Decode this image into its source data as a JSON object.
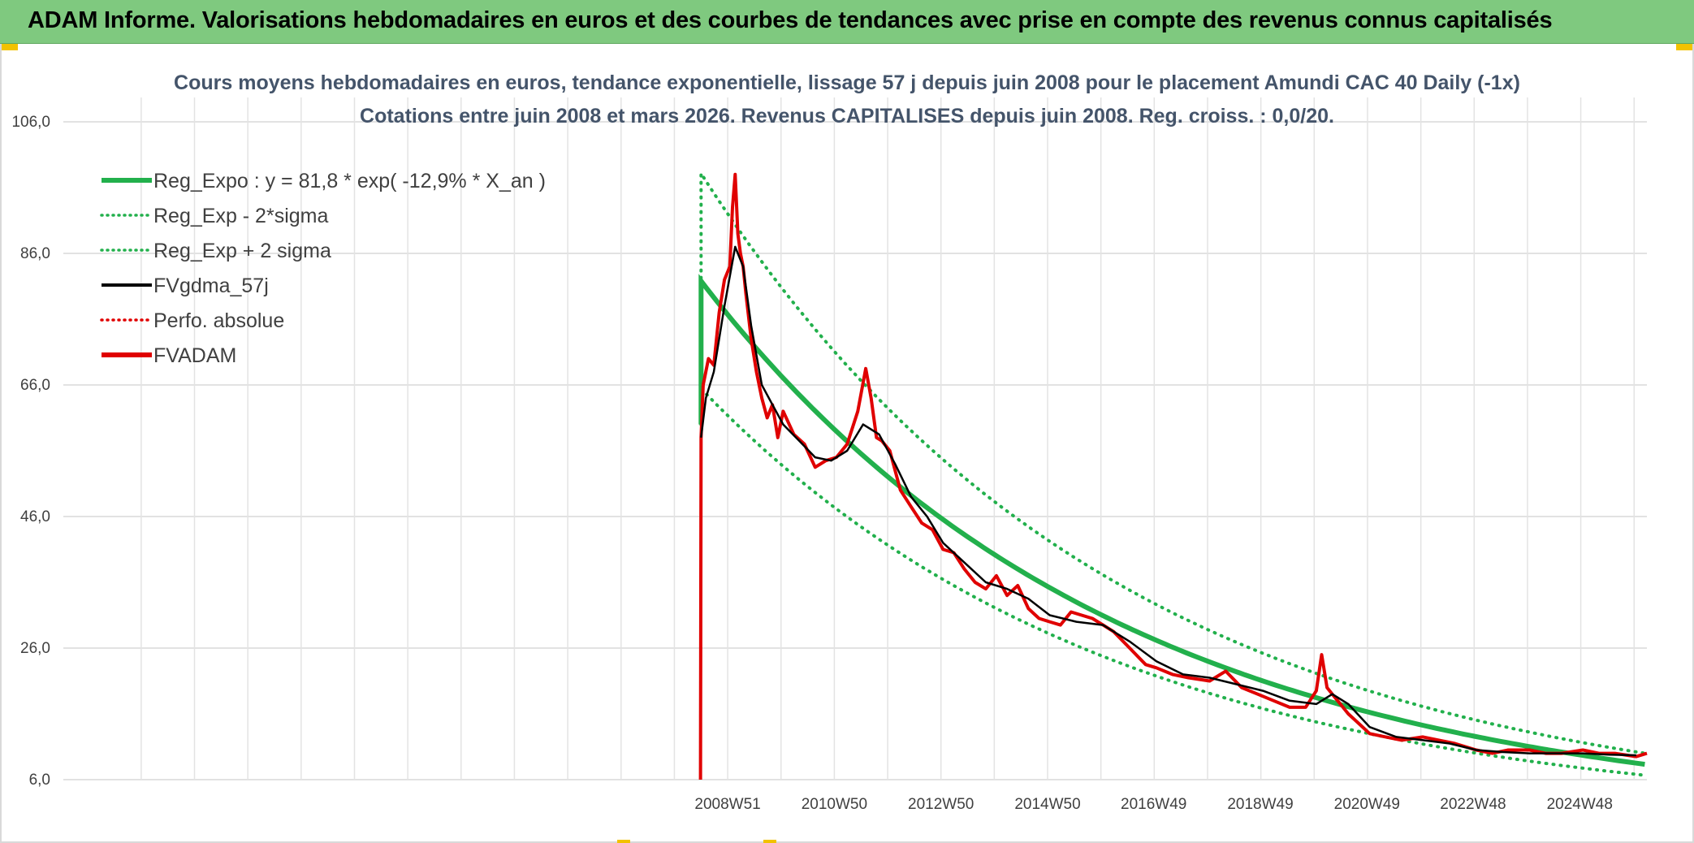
{
  "banner": {
    "title": "ADAM Informe. Valorisations hebdomadaires en euros et des courbes de tendances avec prise en compte des revenus connus capitalisés",
    "background": "#7fc97f"
  },
  "chart_data": {
    "type": "line",
    "title": "Cours moyens hebdomadaires en euros, tendance exponentielle, lissage 57 j depuis juin 2008 pour le placement Amundi CAC 40 Daily (-1x)",
    "subtitle": "Cotations entre juin 2008 et mars 2026. Revenus CAPITALISES depuis juin 2008. Reg. croiss. : 0,0/20.",
    "xlabel": "",
    "ylabel": "",
    "ylim": [
      6,
      106
    ],
    "y_ticks": [
      "106,0",
      "86,0",
      "66,0",
      "46,0",
      "26,0",
      "6,0"
    ],
    "x_ticks": [
      "2008W51",
      "2010W50",
      "2012W50",
      "2014W50",
      "2016W49",
      "2018W49",
      "2020W49",
      "2022W48",
      "2024W48"
    ],
    "x_tick_years": [
      2008.96,
      2010.96,
      2012.96,
      2014.96,
      2016.95,
      2018.95,
      2020.95,
      2022.94,
      2024.94
    ],
    "x_domain": [
      1996.5,
      2026.2
    ],
    "grid": true,
    "legend_position": "top-left",
    "legend": [
      {
        "label": "Reg_Expo : y = 81,8 * exp( -12,9% *  X_an )",
        "color": "#22b04c",
        "style": "solid-thick"
      },
      {
        "label": "Reg_Exp - 2*sigma",
        "color": "#22b04c",
        "style": "dotted"
      },
      {
        "label": "Reg_Exp + 2 sigma",
        "color": "#22b04c",
        "style": "dotted"
      },
      {
        "label": "FVgdma_57j",
        "color": "#000000",
        "style": "solid"
      },
      {
        "label": "Perfo. absolue",
        "color": "#e00000",
        "style": "dotted"
      },
      {
        "label": "FVADAM",
        "color": "#e00000",
        "style": "solid-thick"
      }
    ],
    "regression": {
      "a": 81.8,
      "rate": -0.129,
      "start_year": 2008.46,
      "end_year": 2026.2,
      "sigma_lower_factor": 0.8,
      "sigma_upper_factor": 1.2
    },
    "series": [
      {
        "name": "FVADAM",
        "color": "#e00000",
        "x": [
          2008.45,
          2008.46,
          2008.5,
          2008.6,
          2008.7,
          2008.8,
          2008.9,
          2009.0,
          2009.05,
          2009.1,
          2009.15,
          2009.2,
          2009.25,
          2009.3,
          2009.4,
          2009.5,
          2009.6,
          2009.7,
          2009.8,
          2009.9,
          2010.0,
          2010.2,
          2010.4,
          2010.6,
          2010.8,
          2011.0,
          2011.2,
          2011.4,
          2011.55,
          2011.65,
          2011.75,
          2011.85,
          2012.0,
          2012.2,
          2012.4,
          2012.6,
          2012.8,
          2013.0,
          2013.2,
          2013.4,
          2013.6,
          2013.8,
          2014.0,
          2014.2,
          2014.4,
          2014.6,
          2014.8,
          2015.0,
          2015.2,
          2015.4,
          2015.6,
          2015.8,
          2016.0,
          2016.2,
          2016.5,
          2016.8,
          2017.0,
          2017.3,
          2017.6,
          2018.0,
          2018.3,
          2018.6,
          2018.9,
          2019.2,
          2019.5,
          2019.8,
          2020.0,
          2020.1,
          2020.2,
          2020.3,
          2020.4,
          2020.6,
          2020.8,
          2021.0,
          2021.3,
          2021.6,
          2022.0,
          2022.3,
          2022.6,
          2023.0,
          2023.3,
          2023.6,
          2024.0,
          2024.3,
          2024.6,
          2025.0,
          2025.3,
          2025.6,
          2026.0,
          2026.2
        ],
        "values": [
          6.0,
          58.0,
          66.0,
          70.0,
          69.0,
          77.0,
          82.0,
          84.0,
          93.0,
          98.0,
          89.0,
          86.0,
          84.0,
          80.0,
          73.0,
          68.0,
          64.0,
          61.0,
          63.0,
          58.0,
          62.0,
          58.5,
          57.0,
          53.5,
          54.5,
          55.0,
          57.0,
          62.0,
          68.5,
          64.0,
          58.0,
          57.5,
          56.0,
          50.0,
          47.5,
          45.0,
          44.0,
          41.0,
          40.5,
          38.0,
          36.0,
          35.0,
          37.0,
          34.0,
          35.5,
          32.0,
          30.5,
          30.0,
          29.5,
          31.5,
          31.0,
          30.5,
          29.5,
          28.5,
          26.0,
          23.5,
          23.0,
          22.0,
          21.5,
          21.0,
          22.5,
          20.0,
          19.0,
          18.0,
          17.0,
          17.0,
          19.5,
          25.0,
          20.0,
          19.0,
          18.0,
          16.0,
          14.5,
          13.0,
          12.5,
          12.0,
          12.5,
          12.0,
          11.5,
          10.5,
          10.0,
          10.5,
          10.5,
          10.0,
          10.0,
          10.5,
          10.0,
          10.0,
          9.5,
          10.0
        ]
      },
      {
        "name": "FVgdma_57j",
        "color": "#000000",
        "x": [
          2008.46,
          2008.55,
          2008.7,
          2008.9,
          2009.1,
          2009.25,
          2009.4,
          2009.6,
          2009.8,
          2010.0,
          2010.3,
          2010.6,
          2010.9,
          2011.2,
          2011.5,
          2011.8,
          2012.1,
          2012.4,
          2012.7,
          2013.0,
          2013.4,
          2013.8,
          2014.2,
          2014.6,
          2015.0,
          2015.5,
          2016.0,
          2016.5,
          2017.0,
          2017.5,
          2018.0,
          2018.5,
          2019.0,
          2019.5,
          2020.0,
          2020.3,
          2020.6,
          2021.0,
          2021.5,
          2022.0,
          2022.5,
          2023.0,
          2023.5,
          2024.0,
          2024.5,
          2025.0,
          2025.5,
          2026.0
        ],
        "values": [
          58.0,
          64.0,
          68.0,
          78.0,
          87.0,
          84.0,
          75.0,
          66.0,
          63.0,
          60.0,
          57.5,
          55.0,
          54.5,
          56.0,
          60.0,
          58.5,
          54.0,
          49.0,
          46.0,
          42.0,
          39.0,
          36.0,
          35.0,
          33.5,
          31.0,
          30.0,
          29.5,
          27.0,
          24.0,
          22.0,
          21.5,
          20.5,
          19.5,
          18.0,
          17.5,
          19.0,
          17.5,
          14.0,
          12.5,
          12.0,
          11.5,
          10.5,
          10.2,
          10.0,
          10.0,
          10.0,
          9.8,
          9.7
        ]
      }
    ]
  }
}
